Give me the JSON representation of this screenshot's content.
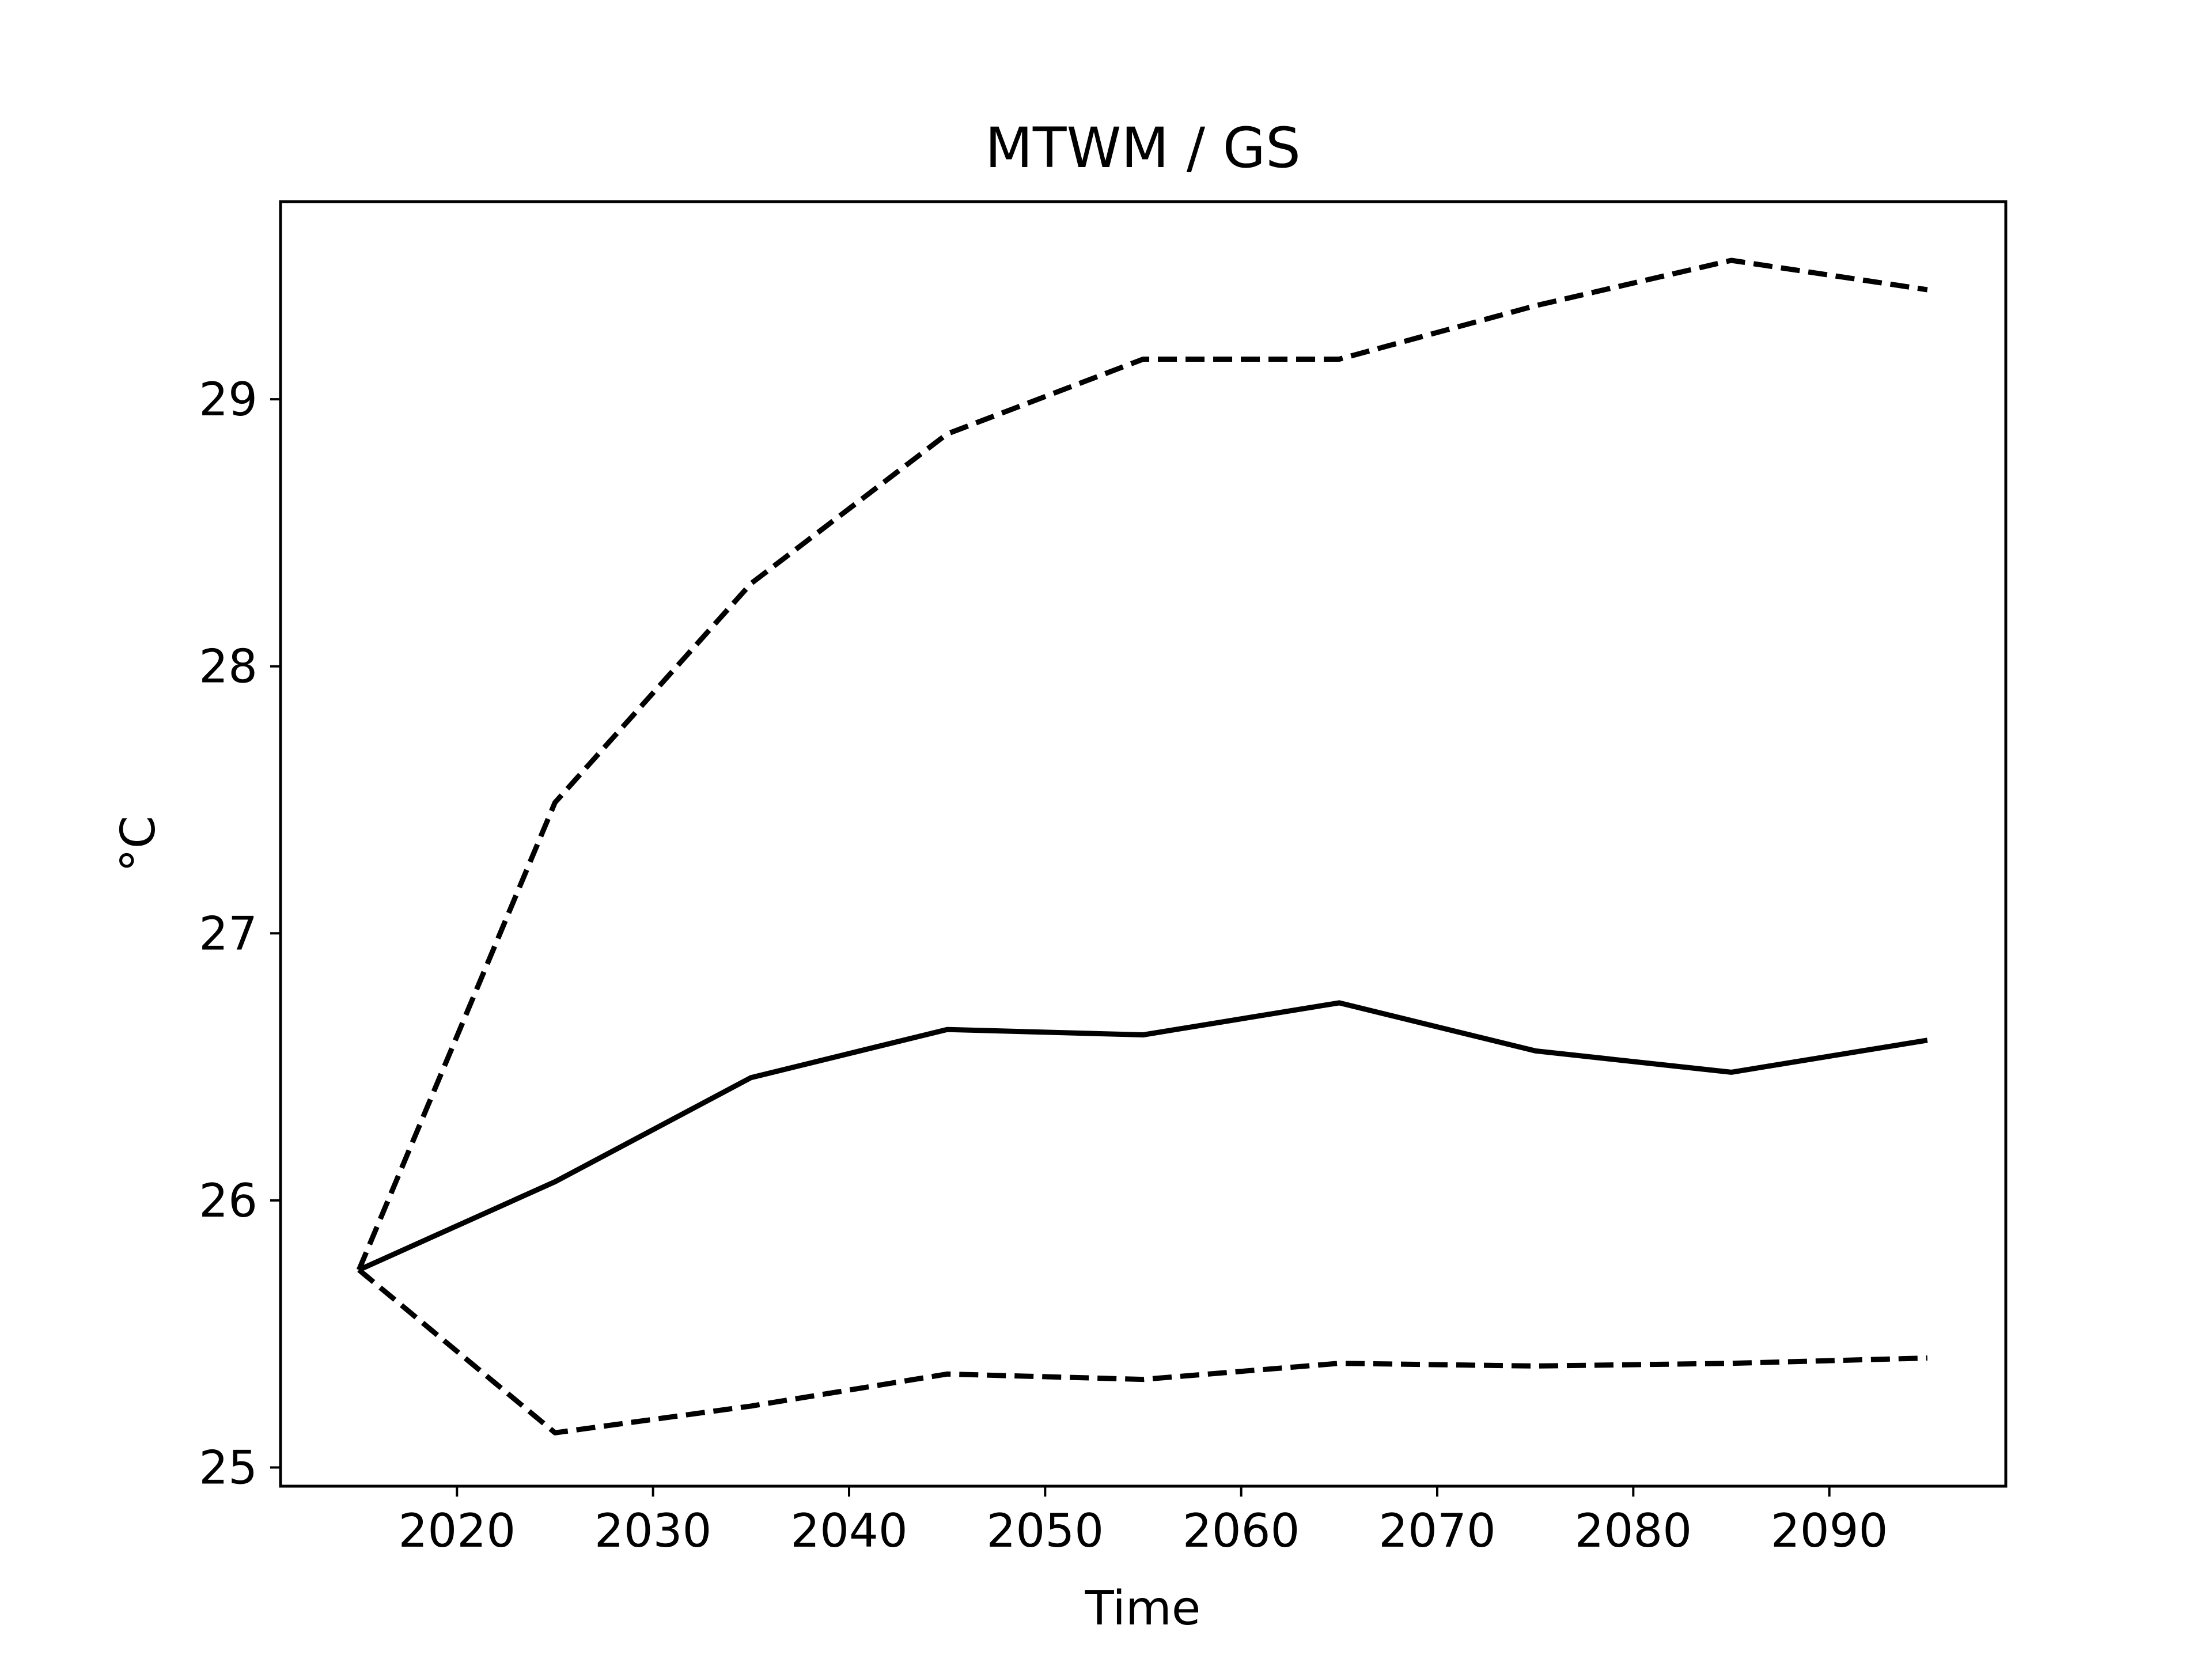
{
  "chart_data": {
    "type": "line",
    "title": "MTWM / GS",
    "xlabel": "Time",
    "ylabel": "°C",
    "xlim": [
      2011,
      2099
    ],
    "ylim": [
      24.93,
      29.74
    ],
    "xticks": [
      2020,
      2030,
      2040,
      2050,
      2060,
      2070,
      2080,
      2090
    ],
    "yticks": [
      25,
      26,
      27,
      28,
      29
    ],
    "grid": false,
    "x": [
      2015,
      2025,
      2035,
      2045,
      2055,
      2065,
      2075,
      2085,
      2095
    ],
    "series": [
      {
        "style": "dashed",
        "color": "#000000",
        "values": [
          25.74,
          27.49,
          28.31,
          28.87,
          29.15,
          29.15,
          29.35,
          29.52,
          29.41
        ]
      },
      {
        "style": "solid",
        "color": "#000000",
        "values": [
          25.74,
          26.07,
          26.46,
          26.64,
          26.62,
          26.74,
          26.56,
          26.48,
          26.6
        ]
      },
      {
        "style": "dashed",
        "color": "#000000",
        "values": [
          25.74,
          25.13,
          25.23,
          25.35,
          25.33,
          25.39,
          25.38,
          25.39,
          25.41
        ]
      }
    ]
  }
}
